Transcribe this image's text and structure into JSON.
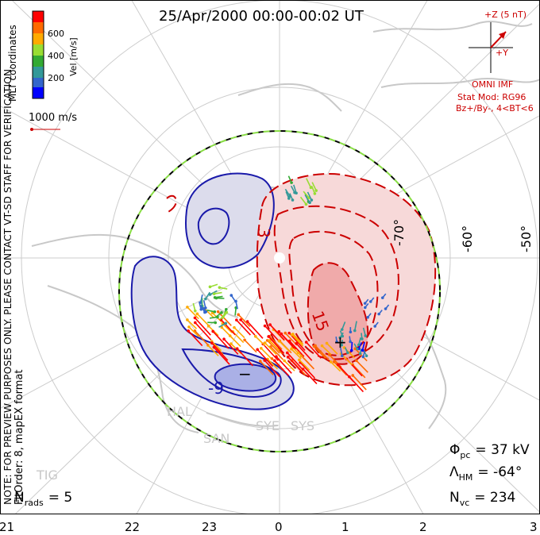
{
  "header": {
    "title": "25/Apr/2000 00:00-00:02 UT"
  },
  "colorbar": {
    "label": "Vel [m/s]",
    "ticks": [
      "600",
      "400",
      "200"
    ],
    "colors": [
      "#ff0000",
      "#ff6a00",
      "#ffaa00",
      "#99dd33",
      "#33aa33",
      "#339999",
      "#3366cc",
      "#0000ff"
    ]
  },
  "scale_vector": {
    "label": "1000 m/s"
  },
  "coord_label": "MLT coordinates",
  "notes": {
    "preview": "NOTE: FOR PREVIEW PURPOSES ONLY. PLEASE CONTACT VT-SD STAFF FOR VERIFICATION.",
    "fit": "FitOrder: 8, mapEX format"
  },
  "imf": {
    "z_label": "+Z (5 nT)",
    "y_label": "+Y",
    "source": "OMNI IMF",
    "model_line1": "Stat Mod: RG96",
    "model_line2": "Bz+/By-, 4<BT<6",
    "color": "#cc0000"
  },
  "lat_labels": [
    "-70°",
    "-60°",
    "-50°"
  ],
  "stats": {
    "phi_symbol": "Φ",
    "phi_sub": "pc",
    "phi_value": "= 37 kV",
    "lambda_symbol": "Λ",
    "lambda_sub": "HM",
    "lambda_value": "= -64°",
    "nvc_symbol": "N",
    "nvc_sub": "vc",
    "nvc_value": "= 234",
    "nrads_symbol": "N",
    "nrads_sub": "rads",
    "nrads_value": "= 5"
  },
  "radars": [
    "HAL",
    "SAN",
    "SYE",
    "SYS",
    "TIG"
  ],
  "contour_labels": {
    "neg": "-9",
    "pos_inner": "15",
    "pos_outer": "3",
    "min_marker": "−",
    "max_marker": "+"
  },
  "chart_data": {
    "type": "polar-map",
    "mlt_labels": [
      "21",
      "22",
      "23",
      "0",
      "1",
      "2",
      "3"
    ],
    "latitude_circles_deg": [
      -80,
      -70,
      -60,
      -50
    ],
    "cross_polar_cap_potential_kV": 37,
    "heppner_maynard_boundary_deg": -64,
    "n_vectors": 234,
    "n_radars": 5,
    "velocity_scale_ms": [
      0,
      800
    ],
    "contours": [
      {
        "sign": "negative",
        "label": "-9",
        "color": "#1a1aaa"
      },
      {
        "sign": "positive",
        "label": "3",
        "color": "#cc0000"
      },
      {
        "sign": "positive",
        "label": "15",
        "color": "#cc0000"
      }
    ]
  }
}
